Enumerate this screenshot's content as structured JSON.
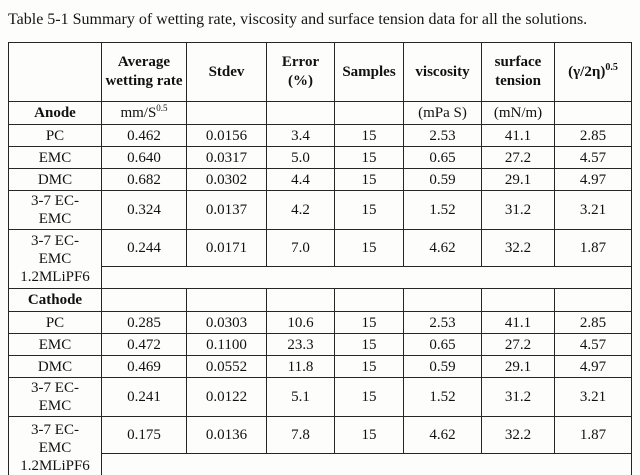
{
  "caption": "Table 5-1 Summary of wetting rate, viscosity and surface tension data for all the solutions.",
  "table": {
    "headers": {
      "corner": "",
      "avg_wetting_rate": "Average wetting rate",
      "stdev": "Stdev",
      "error_pct": "Error (%)",
      "samples": "Samples",
      "viscosity": "viscosity",
      "surface_tension": "surface tension",
      "gamma_base": "(γ/2η)",
      "gamma_sup": "0.5"
    },
    "anode": {
      "label": "Anode",
      "wetting_unit_base": "mm/S",
      "wetting_unit_sup": "0.5",
      "viscosity_unit": "(mPa S)",
      "surface_tension_unit": "(mN/m)",
      "rows": [
        {
          "label_lines": [
            "PC"
          ],
          "values": [
            "0.462",
            "0.0156",
            "3.4",
            "15",
            "2.53",
            "41.1",
            "2.85"
          ]
        },
        {
          "label_lines": [
            "EMC"
          ],
          "values": [
            "0.640",
            "0.0317",
            "5.0",
            "15",
            "0.65",
            "27.2",
            "4.57"
          ]
        },
        {
          "label_lines": [
            "DMC"
          ],
          "values": [
            "0.682",
            "0.0302",
            "4.4",
            "15",
            "0.59",
            "29.1",
            "4.97"
          ]
        },
        {
          "label_lines": [
            "3-7 EC-",
            "EMC"
          ],
          "values": [
            "0.324",
            "0.0137",
            "4.2",
            "15",
            "1.52",
            "31.2",
            "3.21"
          ]
        },
        {
          "label_lines": [
            "3-7 EC-",
            "EMC",
            "1.2MLiPF6"
          ],
          "values": [
            "0.244",
            "0.0171",
            "7.0",
            "15",
            "4.62",
            "32.2",
            "1.87"
          ]
        }
      ]
    },
    "cathode": {
      "label": "Cathode",
      "rows": [
        {
          "label_lines": [
            "PC"
          ],
          "values": [
            "0.285",
            "0.0303",
            "10.6",
            "15",
            "2.53",
            "41.1",
            "2.85"
          ]
        },
        {
          "label_lines": [
            "EMC"
          ],
          "values": [
            "0.472",
            "0.1100",
            "23.3",
            "15",
            "0.65",
            "27.2",
            "4.57"
          ]
        },
        {
          "label_lines": [
            "DMC"
          ],
          "values": [
            "0.469",
            "0.0552",
            "11.8",
            "15",
            "0.59",
            "29.1",
            "4.97"
          ]
        },
        {
          "label_lines": [
            "3-7 EC-",
            "EMC"
          ],
          "values": [
            "0.241",
            "0.0122",
            "5.1",
            "15",
            "1.52",
            "31.2",
            "3.21"
          ]
        },
        {
          "label_lines": [
            "3-7 EC-",
            "EMC",
            "1.2MLiPF6"
          ],
          "values": [
            "0.175",
            "0.0136",
            "7.8",
            "15",
            "4.62",
            "32.2",
            "1.87"
          ]
        }
      ]
    }
  }
}
